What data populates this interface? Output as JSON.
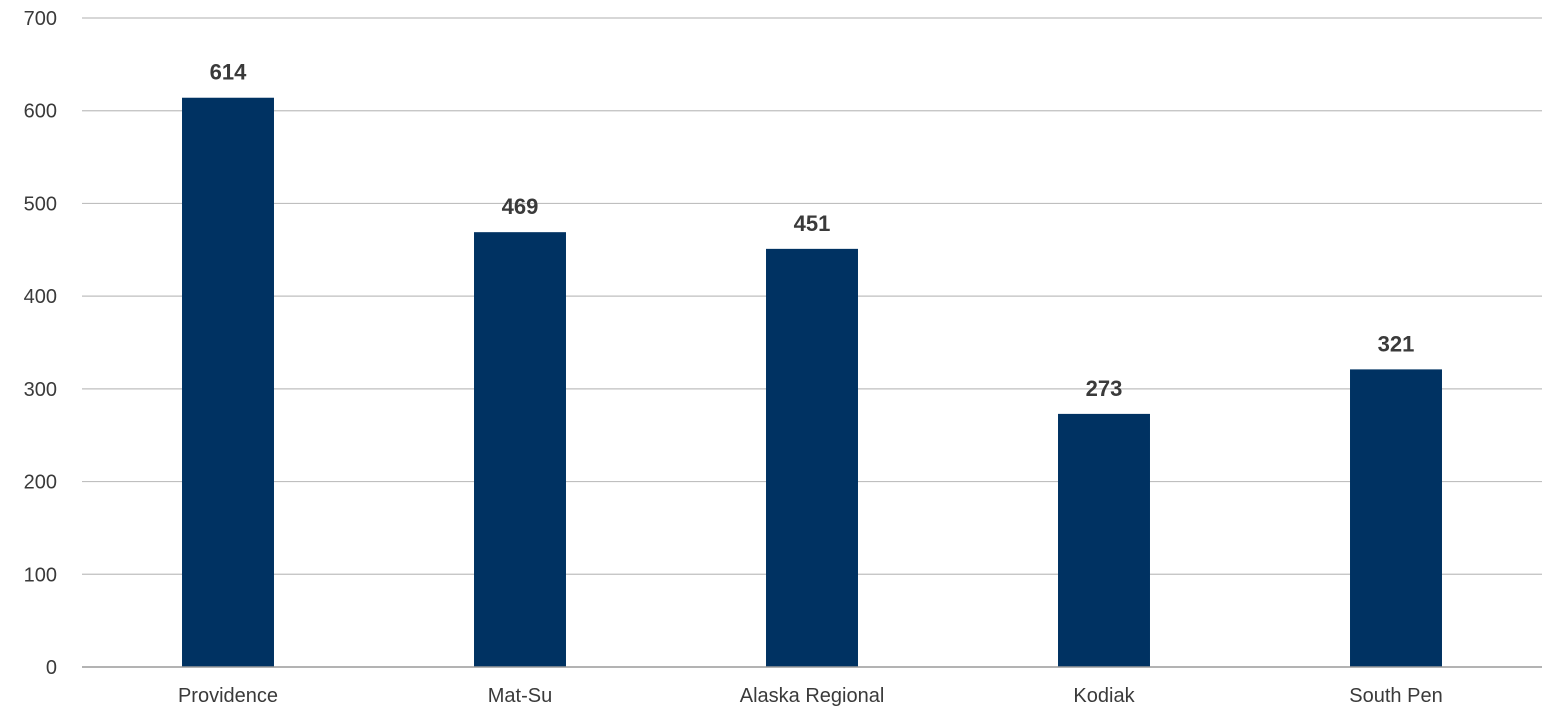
{
  "chart_data": {
    "type": "bar",
    "title": "",
    "xlabel": "",
    "ylabel": "",
    "categories": [
      "Providence",
      "Mat-Su",
      "Alaska Regional",
      "Kodiak",
      "South Pen"
    ],
    "values": [
      614,
      469,
      451,
      273,
      321
    ],
    "data_labels": [
      "614",
      "469",
      "451",
      "273",
      "321"
    ],
    "ylim": [
      0,
      700
    ],
    "yticks": [
      0,
      100,
      200,
      300,
      400,
      500,
      600,
      700
    ],
    "ytick_labels": [
      "0",
      "100",
      "200",
      "300",
      "400",
      "500",
      "600",
      "700"
    ],
    "grid": true,
    "legend": "none",
    "bar_color": "#003262"
  }
}
